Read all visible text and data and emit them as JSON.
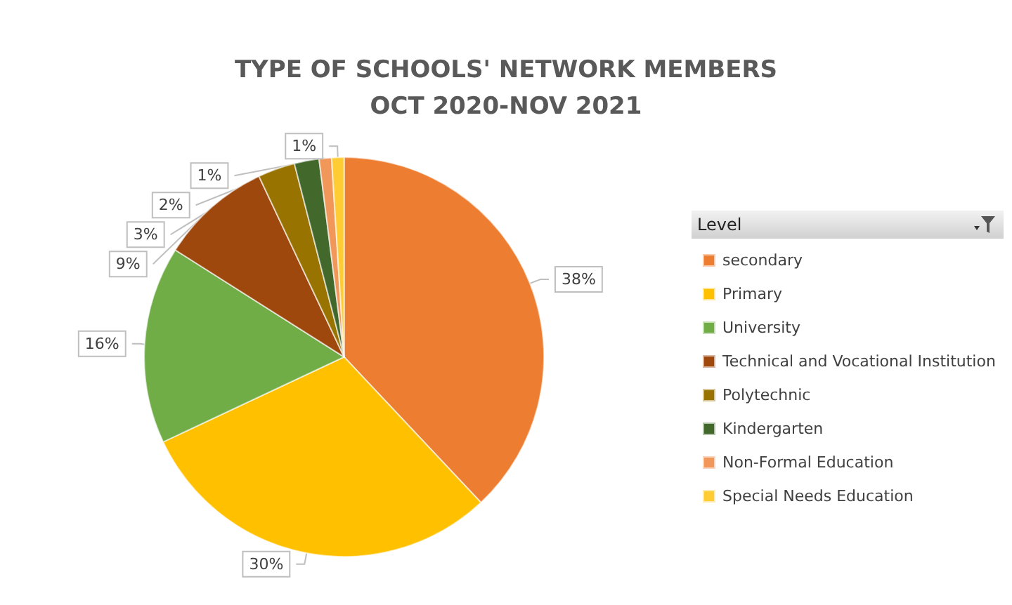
{
  "chart_data": {
    "type": "pie",
    "title": "TYPE OF SCHOOLS' NETWORK MEMBERS\nOCT 2020-NOV 2021",
    "legend_title": "Level",
    "legend": "right",
    "categories": [
      "secondary",
      "Primary",
      "University",
      "Technical and Vocational Institution",
      "Polytechnic",
      "Kindergarten",
      "Non-Formal Education",
      "Special Needs Education"
    ],
    "values": [
      38,
      30,
      16,
      9,
      3,
      2,
      1,
      1
    ],
    "value_labels": [
      "38%",
      "30%",
      "16%",
      "9%",
      "3%",
      "2%",
      "1%",
      "1%"
    ],
    "colors": [
      "#ed7d31",
      "#ffc000",
      "#70ad47",
      "#9e480e",
      "#997300",
      "#43682b",
      "#f1975a",
      "#ffcd33"
    ]
  }
}
